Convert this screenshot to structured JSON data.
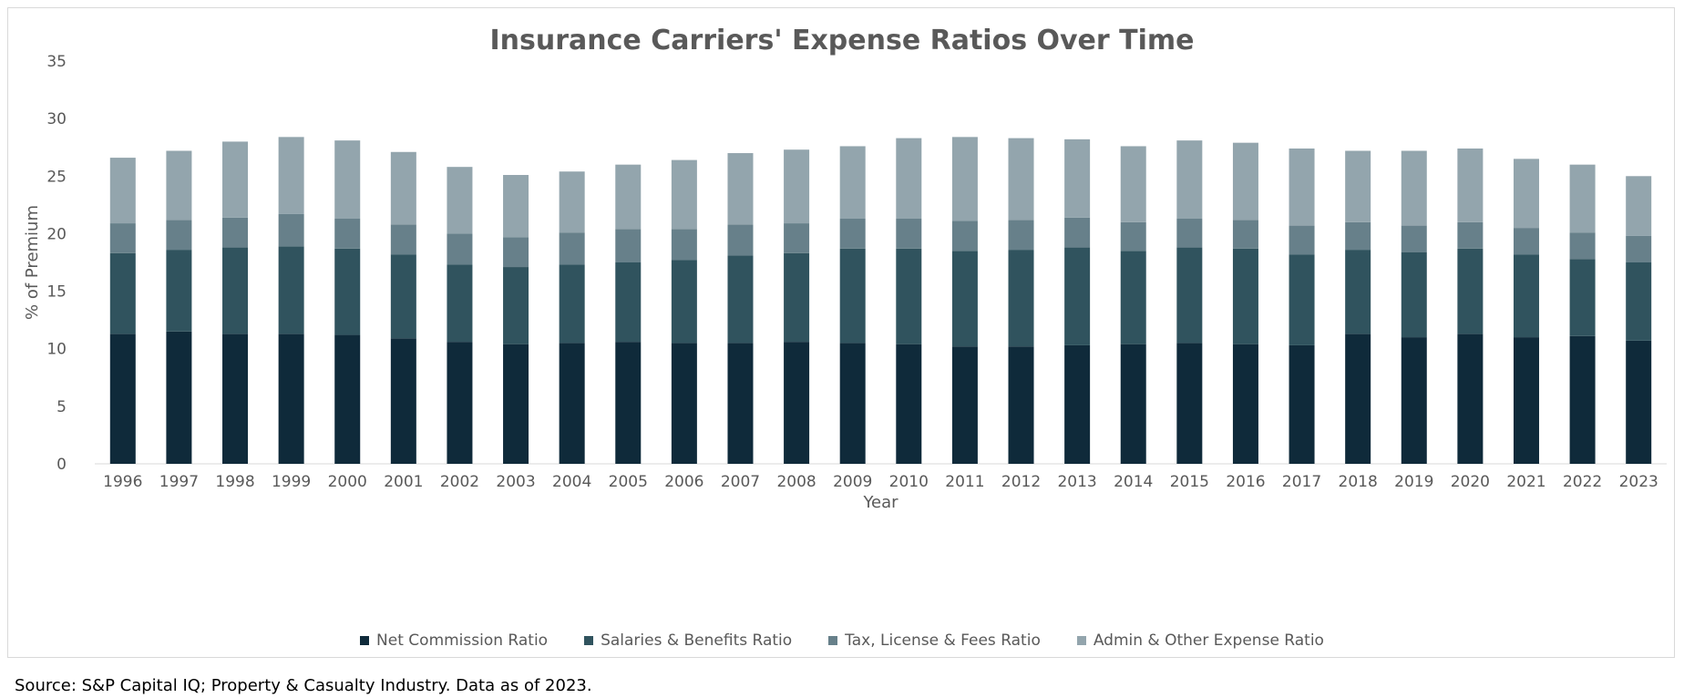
{
  "chart_data": {
    "type": "bar",
    "stacked": true,
    "title": "Insurance Carriers' Expense Ratios Over Time",
    "xlabel": "Year",
    "ylabel": "% of Premium",
    "ylim": [
      0,
      35
    ],
    "yticks": [
      0,
      5,
      10,
      15,
      20,
      25,
      30,
      35
    ],
    "grid": false,
    "legend": "bottom",
    "categories": [
      "1996",
      "1997",
      "1998",
      "1999",
      "2000",
      "2001",
      "2002",
      "2003",
      "2004",
      "2005",
      "2006",
      "2007",
      "2008",
      "2009",
      "2010",
      "2011",
      "2012",
      "2013",
      "2014",
      "2015",
      "2016",
      "2017",
      "2018",
      "2019",
      "2020",
      "2021",
      "2022",
      "2023"
    ],
    "series": [
      {
        "name": "Net Commission Ratio",
        "color": "#0f2a3a",
        "values": [
          11.3,
          11.5,
          11.3,
          11.3,
          11.2,
          10.9,
          10.6,
          10.4,
          10.5,
          10.6,
          10.5,
          10.5,
          10.6,
          10.5,
          10.4,
          10.2,
          10.2,
          10.3,
          10.4,
          10.5,
          10.4,
          10.3,
          11.3,
          11.0,
          11.3,
          11.0,
          11.1,
          10.7
        ]
      },
      {
        "name": "Salaries & Benefits Ratio",
        "color": "#30535e",
        "values": [
          7.0,
          7.1,
          7.5,
          7.6,
          7.5,
          7.3,
          6.7,
          6.7,
          6.8,
          6.9,
          7.2,
          7.6,
          7.7,
          8.2,
          8.3,
          8.3,
          8.4,
          8.5,
          8.1,
          8.3,
          8.3,
          7.9,
          7.3,
          7.4,
          7.4,
          7.2,
          6.7,
          6.8
        ]
      },
      {
        "name": "Tax, License & Fees Ratio",
        "color": "#67808a",
        "values": [
          2.6,
          2.6,
          2.6,
          2.8,
          2.6,
          2.6,
          2.7,
          2.6,
          2.8,
          2.9,
          2.7,
          2.7,
          2.6,
          2.6,
          2.6,
          2.6,
          2.6,
          2.6,
          2.5,
          2.5,
          2.5,
          2.5,
          2.4,
          2.3,
          2.3,
          2.3,
          2.3,
          2.3
        ]
      },
      {
        "name": "Admin & Other Expense Ratio",
        "color": "#93a5ad",
        "values": [
          5.7,
          6.0,
          6.6,
          6.7,
          6.8,
          6.3,
          5.8,
          5.4,
          5.3,
          5.6,
          6.0,
          6.2,
          6.4,
          6.3,
          7.0,
          7.3,
          7.1,
          6.8,
          6.6,
          6.8,
          6.7,
          6.7,
          6.2,
          6.5,
          6.4,
          6.0,
          5.9,
          5.2
        ]
      }
    ]
  },
  "source": "Source: S&P Capital IQ; Property & Casualty Industry. Data as of 2023."
}
